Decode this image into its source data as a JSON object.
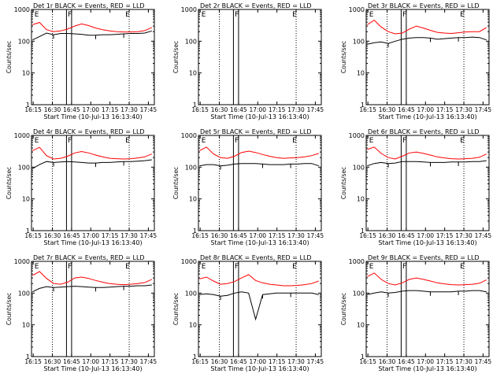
{
  "chart_data": [
    {
      "type": "line",
      "title": "Det 1r BLACK = Events, RED = LLD",
      "xlabel": "Start Time (10-Jul-13 16:13:40)",
      "ylabel": "Counts/sec",
      "yscale": "log",
      "ylim": [
        1,
        1000
      ],
      "yticks": [
        "1",
        "10",
        "100",
        "1000"
      ],
      "xticks": [
        "16:15",
        "16:30",
        "16:45",
        "17:00",
        "17:15",
        "17:30",
        "17:45"
      ],
      "markers": [
        {
          "label": "E",
          "time": "16:16"
        },
        {
          "label": "F",
          "time": "16:42"
        },
        {
          "label": "E",
          "time": "17:27"
        }
      ],
      "shape": "A",
      "series": [
        {
          "name": "Events",
          "color": "#000000",
          "values": [
            110,
            140,
            180,
            160,
            175,
            175,
            170,
            165,
            155,
            155,
            160,
            160,
            165,
            170,
            175,
            175,
            180,
            210
          ]
        },
        {
          "name": "LLD",
          "color": "#ff0000",
          "values": [
            330,
            390,
            230,
            200,
            210,
            240,
            300,
            350,
            310,
            260,
            230,
            210,
            200,
            195,
            195,
            200,
            215,
            270
          ]
        }
      ]
    },
    {
      "type": "line",
      "title": "Det 2r BLACK = Events, RED = LLD",
      "xlabel": "Start Time (10-Jul-13 16:13:40)",
      "ylabel": "Counts/sec",
      "yscale": "log",
      "ylim": [
        1,
        1000
      ],
      "yticks": [
        "1",
        "10",
        "100",
        "1000"
      ],
      "xticks": [
        "16:15",
        "16:30",
        "16:45",
        "17:00",
        "17:15",
        "17:30",
        "17:45"
      ],
      "markers": [
        {
          "label": "E",
          "time": "16:16"
        },
        {
          "label": "F",
          "time": "16:42"
        },
        {
          "label": "E",
          "time": "17:27"
        }
      ],
      "shape": "none",
      "series": []
    },
    {
      "type": "line",
      "title": "Det 3r BLACK = Events, RED = LLD",
      "xlabel": "Start Time (10-Jul-13 16:13:40)",
      "ylabel": "Counts/sec",
      "yscale": "log",
      "ylim": [
        1,
        1000
      ],
      "yticks": [
        "1",
        "10",
        "100",
        "1000"
      ],
      "xticks": [
        "16:15",
        "16:30",
        "16:45",
        "17:00",
        "17:15",
        "17:30",
        "17:45"
      ],
      "markers": [
        {
          "label": "E",
          "time": "16:16"
        },
        {
          "label": "F",
          "time": "16:42"
        },
        {
          "label": "E",
          "time": "17:27"
        }
      ],
      "shape": "B",
      "series": [
        {
          "name": "Events",
          "color": "#000000",
          "values": [
            80,
            90,
            95,
            85,
            100,
            115,
            125,
            130,
            130,
            125,
            115,
            120,
            125,
            130,
            130,
            135,
            130,
            110
          ]
        },
        {
          "name": "LLD",
          "color": "#ff0000",
          "values": [
            330,
            460,
            280,
            200,
            170,
            180,
            240,
            300,
            260,
            220,
            190,
            180,
            175,
            185,
            195,
            200,
            200,
            270
          ]
        }
      ]
    },
    {
      "type": "line",
      "title": "Det 4r BLACK = Events, RED = LLD",
      "xlabel": "Start Time (10-Jul-13 16:13:40)",
      "ylabel": "Counts/sec",
      "yscale": "log",
      "ylim": [
        1,
        1000
      ],
      "yticks": [
        "1",
        "10",
        "100",
        "1000"
      ],
      "xticks": [
        "16:15",
        "16:30",
        "16:45",
        "17:00",
        "17:15",
        "17:30",
        "17:45"
      ],
      "markers": [
        {
          "label": "E",
          "time": "16:16"
        },
        {
          "label": "F",
          "time": "16:42"
        },
        {
          "label": "E",
          "time": "17:27"
        }
      ],
      "shape": "A",
      "series": [
        {
          "name": "Events",
          "color": "#000000",
          "values": [
            90,
            120,
            150,
            140,
            145,
            150,
            145,
            140,
            135,
            135,
            140,
            140,
            145,
            150,
            150,
            155,
            160,
            170
          ]
        },
        {
          "name": "LLD",
          "color": "#ff0000",
          "values": [
            330,
            420,
            230,
            180,
            190,
            220,
            280,
            310,
            280,
            240,
            210,
            190,
            185,
            180,
            185,
            195,
            210,
            260
          ]
        }
      ]
    },
    {
      "type": "line",
      "title": "Det 5r BLACK = Events, RED = LLD",
      "xlabel": "Start Time (10-Jul-13 16:13:40)",
      "ylabel": "Counts/sec",
      "yscale": "log",
      "ylim": [
        1,
        1000
      ],
      "yticks": [
        "1",
        "10",
        "100",
        "1000"
      ],
      "xticks": [
        "16:15",
        "16:30",
        "16:45",
        "17:00",
        "17:15",
        "17:30",
        "17:45"
      ],
      "markers": [
        {
          "label": "E",
          "time": "16:16"
        },
        {
          "label": "F",
          "time": "16:42"
        },
        {
          "label": "E",
          "time": "17:27"
        }
      ],
      "shape": "B",
      "series": [
        {
          "name": "Events",
          "color": "#000000",
          "values": [
            110,
            120,
            120,
            110,
            115,
            125,
            130,
            130,
            130,
            125,
            120,
            120,
            120,
            125,
            125,
            130,
            130,
            110
          ]
        },
        {
          "name": "LLD",
          "color": "#ff0000",
          "values": [
            330,
            430,
            260,
            200,
            190,
            220,
            290,
            320,
            290,
            250,
            220,
            200,
            190,
            195,
            200,
            210,
            230,
            270
          ]
        }
      ]
    },
    {
      "type": "line",
      "title": "Det 6r BLACK = Events, RED = LLD",
      "xlabel": "Start Time (10-Jul-13 16:13:40)",
      "ylabel": "Counts/sec",
      "yscale": "log",
      "ylim": [
        1,
        1000
      ],
      "yticks": [
        "1",
        "10",
        "100",
        "1000"
      ],
      "xticks": [
        "16:15",
        "16:30",
        "16:45",
        "17:00",
        "17:15",
        "17:30",
        "17:45"
      ],
      "markers": [
        {
          "label": "E",
          "time": "16:16"
        },
        {
          "label": "F",
          "time": "16:42"
        },
        {
          "label": "E",
          "time": "17:27"
        }
      ],
      "shape": "A",
      "series": [
        {
          "name": "Events",
          "color": "#000000",
          "values": [
            110,
            130,
            140,
            130,
            135,
            150,
            150,
            150,
            145,
            140,
            140,
            140,
            145,
            145,
            145,
            150,
            150,
            160
          ]
        },
        {
          "name": "LLD",
          "color": "#ff0000",
          "values": [
            360,
            430,
            270,
            200,
            180,
            220,
            280,
            300,
            270,
            240,
            210,
            195,
            185,
            180,
            185,
            190,
            205,
            260
          ]
        }
      ]
    },
    {
      "type": "line",
      "title": "Det 7r BLACK = Events, RED = LLD",
      "xlabel": "Start Time (10-Jul-13 16:13:40)",
      "ylabel": "Counts/sec",
      "yscale": "log",
      "ylim": [
        1,
        1000
      ],
      "yticks": [
        "1",
        "10",
        "100",
        "1000"
      ],
      "xticks": [
        "16:15",
        "16:30",
        "16:45",
        "17:00",
        "17:15",
        "17:30",
        "17:45"
      ],
      "markers": [
        {
          "label": "E",
          "time": "16:16"
        },
        {
          "label": "F",
          "time": "16:42"
        },
        {
          "label": "E",
          "time": "17:27"
        }
      ],
      "shape": "A",
      "series": [
        {
          "name": "Events",
          "color": "#000000",
          "values": [
            110,
            140,
            160,
            150,
            155,
            160,
            165,
            160,
            155,
            150,
            150,
            155,
            160,
            165,
            165,
            170,
            170,
            180
          ]
        },
        {
          "name": "LLD",
          "color": "#ff0000",
          "values": [
            360,
            480,
            290,
            200,
            190,
            220,
            300,
            320,
            290,
            250,
            220,
            200,
            190,
            185,
            190,
            200,
            215,
            270
          ]
        }
      ]
    },
    {
      "type": "line",
      "title": "Det 8r BLACK = Events, RED = LLD",
      "xlabel": "Start Time (10-Jul-13 16:13:40)",
      "ylabel": "Counts/sec",
      "yscale": "log",
      "ylim": [
        1,
        1000
      ],
      "yticks": [
        "1",
        "10",
        "100",
        "1000"
      ],
      "xticks": [
        "16:15",
        "16:30",
        "16:45",
        "17:00",
        "17:15",
        "17:30",
        "17:45"
      ],
      "markers": [
        {
          "label": "E",
          "time": "16:16"
        },
        {
          "label": "F",
          "time": "16:42"
        },
        {
          "label": "E",
          "time": "17:27"
        }
      ],
      "shape": "C",
      "series": [
        {
          "name": "Events",
          "color": "#000000",
          "values": [
            90,
            95,
            90,
            80,
            85,
            100,
            110,
            100,
            15,
            90,
            95,
            100,
            100,
            100,
            100,
            100,
            100,
            90
          ]
        },
        {
          "name": "LLD",
          "color": "#ff0000",
          "values": [
            280,
            320,
            240,
            190,
            200,
            230,
            300,
            380,
            250,
            210,
            190,
            180,
            170,
            170,
            175,
            185,
            200,
            240
          ]
        }
      ]
    },
    {
      "type": "line",
      "title": "Det 9r BLACK = Events, RED = LLD",
      "xlabel": "Start Time (10-Jul-13 16:13:40)",
      "ylabel": "Counts/sec",
      "yscale": "log",
      "ylim": [
        1,
        1000
      ],
      "yticks": [
        "1",
        "10",
        "100",
        "1000"
      ],
      "xticks": [
        "16:15",
        "16:30",
        "16:45",
        "17:00",
        "17:15",
        "17:30",
        "17:45"
      ],
      "markers": [
        {
          "label": "E",
          "time": "16:16"
        },
        {
          "label": "F",
          "time": "16:42"
        },
        {
          "label": "E",
          "time": "17:27"
        }
      ],
      "shape": "B",
      "series": [
        {
          "name": "Events",
          "color": "#000000",
          "values": [
            90,
            100,
            110,
            100,
            105,
            115,
            120,
            120,
            115,
            110,
            110,
            110,
            110,
            115,
            115,
            120,
            120,
            110
          ]
        },
        {
          "name": "LLD",
          "color": "#ff0000",
          "values": [
            330,
            430,
            270,
            200,
            180,
            210,
            270,
            300,
            270,
            240,
            210,
            195,
            185,
            180,
            185,
            190,
            205,
            260
          ]
        }
      ]
    }
  ]
}
